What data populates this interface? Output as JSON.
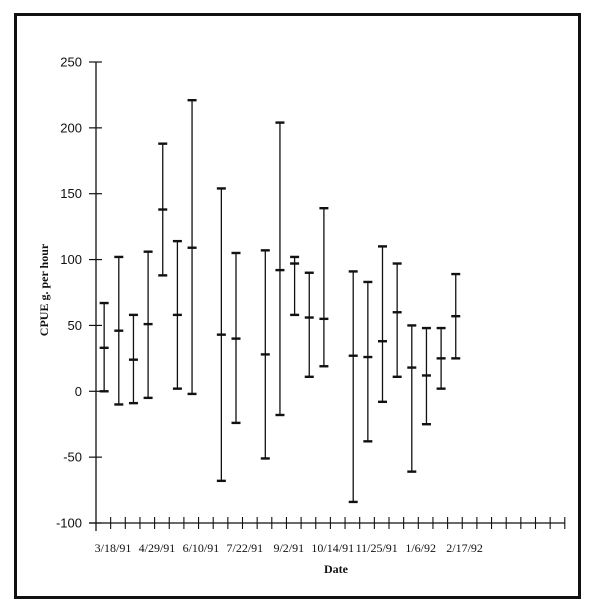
{
  "chart_data": {
    "type": "errorbar",
    "title": "",
    "xlabel": "Date",
    "ylabel": "CPUE g. per hour",
    "ylim": [
      -100,
      250
    ],
    "yticks": [
      250,
      200,
      150,
      100,
      50,
      0,
      -50,
      -100
    ],
    "xtick_labels": [
      "3/18/91",
      "4/29/91",
      "6/10/91",
      "7/22/91",
      "9/2/91",
      "10/14/91",
      "11/25/91",
      "1/6/92",
      "2/17/92"
    ],
    "grid": false,
    "legend": null,
    "x_tick_count": 32,
    "series": [
      {
        "name": "CPUE",
        "points": [
          {
            "slot": 1,
            "high": 67,
            "mean": 33,
            "low": 0
          },
          {
            "slot": 2,
            "high": 102,
            "mean": 46,
            "low": -10
          },
          {
            "slot": 3,
            "high": 58,
            "mean": 24,
            "low": -9
          },
          {
            "slot": 4,
            "high": 106,
            "mean": 51,
            "low": -5
          },
          {
            "slot": 5,
            "high": 188,
            "mean": 138,
            "low": 88
          },
          {
            "slot": 6,
            "high": 114,
            "mean": 58,
            "low": 2
          },
          {
            "slot": 7,
            "high": 221,
            "mean": 109,
            "low": -2
          },
          {
            "slot": 9,
            "high": 154,
            "mean": 43,
            "low": -68
          },
          {
            "slot": 10,
            "high": 105,
            "mean": 40,
            "low": -24
          },
          {
            "slot": 12,
            "high": 107,
            "mean": 28,
            "low": -51
          },
          {
            "slot": 13,
            "high": 204,
            "mean": 92,
            "low": -18
          },
          {
            "slot": 14,
            "high": 102,
            "mean": 97,
            "low": 58
          },
          {
            "slot": 15,
            "high": 90,
            "mean": 56,
            "low": 11
          },
          {
            "slot": 16,
            "high": 139,
            "mean": 55,
            "low": 19
          },
          {
            "slot": 18,
            "high": 91,
            "mean": 27,
            "low": -84
          },
          {
            "slot": 19,
            "high": 83,
            "mean": 26,
            "low": -38
          },
          {
            "slot": 20,
            "high": 110,
            "mean": 38,
            "low": -8
          },
          {
            "slot": 21,
            "high": 97,
            "mean": 60,
            "low": 11
          },
          {
            "slot": 22,
            "high": 50,
            "mean": 18,
            "low": -61
          },
          {
            "slot": 23,
            "high": 48,
            "mean": 12,
            "low": -25
          },
          {
            "slot": 24,
            "high": 48,
            "mean": 25,
            "low": 2
          },
          {
            "slot": 25,
            "high": 89,
            "mean": 57,
            "low": 25
          }
        ]
      }
    ],
    "first_bar_is_axis_range": {
      "high": 250,
      "low": -100
    }
  },
  "colors": {
    "ink": "#111111",
    "background": "#ffffff"
  }
}
